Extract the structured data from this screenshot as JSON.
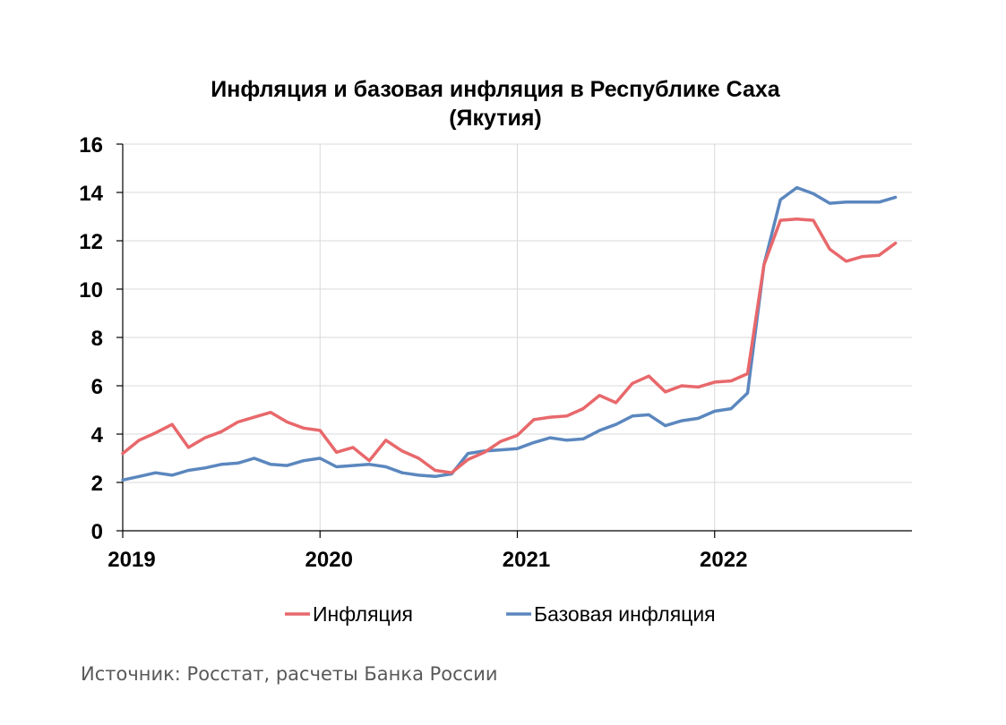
{
  "source": "Источник: Росстат, расчеты Банка России",
  "chart_data": {
    "type": "line",
    "title": [
      "Инфляция и базовая инфляция в Республике Саха",
      "(Якутия)"
    ],
    "xlabel": "",
    "ylabel": "",
    "ylim": [
      0,
      16
    ],
    "yticks": [
      "0",
      "2",
      "4",
      "6",
      "8",
      "10",
      "12",
      "14",
      "16"
    ],
    "xticks": [
      "2019",
      "2020",
      "2021",
      "2022"
    ],
    "grid": true,
    "legend_position": "bottom",
    "x": [
      "2019-01",
      "2019-02",
      "2019-03",
      "2019-04",
      "2019-05",
      "2019-06",
      "2019-07",
      "2019-08",
      "2019-09",
      "2019-10",
      "2019-11",
      "2019-12",
      "2020-01",
      "2020-02",
      "2020-03",
      "2020-04",
      "2020-05",
      "2020-06",
      "2020-07",
      "2020-08",
      "2020-09",
      "2020-10",
      "2020-11",
      "2020-12",
      "2021-01",
      "2021-02",
      "2021-03",
      "2021-04",
      "2021-05",
      "2021-06",
      "2021-07",
      "2021-08",
      "2021-09",
      "2021-10",
      "2021-11",
      "2021-12",
      "2022-01",
      "2022-02",
      "2022-03",
      "2022-04",
      "2022-05",
      "2022-06",
      "2022-07",
      "2022-08",
      "2022-09",
      "2022-10",
      "2022-11",
      "2022-12"
    ],
    "series": [
      {
        "name": "Инфляция",
        "color": "#E8686B",
        "values": [
          3.2,
          3.75,
          4.05,
          4.4,
          3.45,
          3.85,
          4.1,
          4.5,
          4.7,
          4.9,
          4.5,
          4.25,
          4.15,
          3.25,
          3.45,
          2.9,
          3.75,
          3.3,
          3.0,
          2.5,
          2.4,
          2.95,
          3.25,
          3.7,
          3.95,
          4.6,
          4.7,
          4.75,
          5.05,
          5.6,
          5.3,
          6.1,
          6.4,
          5.75,
          6.0,
          5.95,
          6.15,
          6.2,
          6.5,
          11.0,
          12.85,
          12.9,
          12.85,
          11.65,
          11.15,
          11.35,
          11.4,
          11.9
        ]
      },
      {
        "name": "Базовая инфляция",
        "color": "#5B87BE",
        "values": [
          2.1,
          2.25,
          2.4,
          2.3,
          2.5,
          2.6,
          2.75,
          2.8,
          3.0,
          2.75,
          2.7,
          2.9,
          3.0,
          2.65,
          2.7,
          2.75,
          2.65,
          2.4,
          2.3,
          2.25,
          2.35,
          3.2,
          3.3,
          3.35,
          3.4,
          3.65,
          3.85,
          3.75,
          3.8,
          4.15,
          4.4,
          4.75,
          4.8,
          4.35,
          4.55,
          4.65,
          4.95,
          5.05,
          5.7,
          11.0,
          13.7,
          14.2,
          13.95,
          13.55,
          13.6,
          13.6,
          13.6,
          13.8
        ]
      }
    ]
  }
}
